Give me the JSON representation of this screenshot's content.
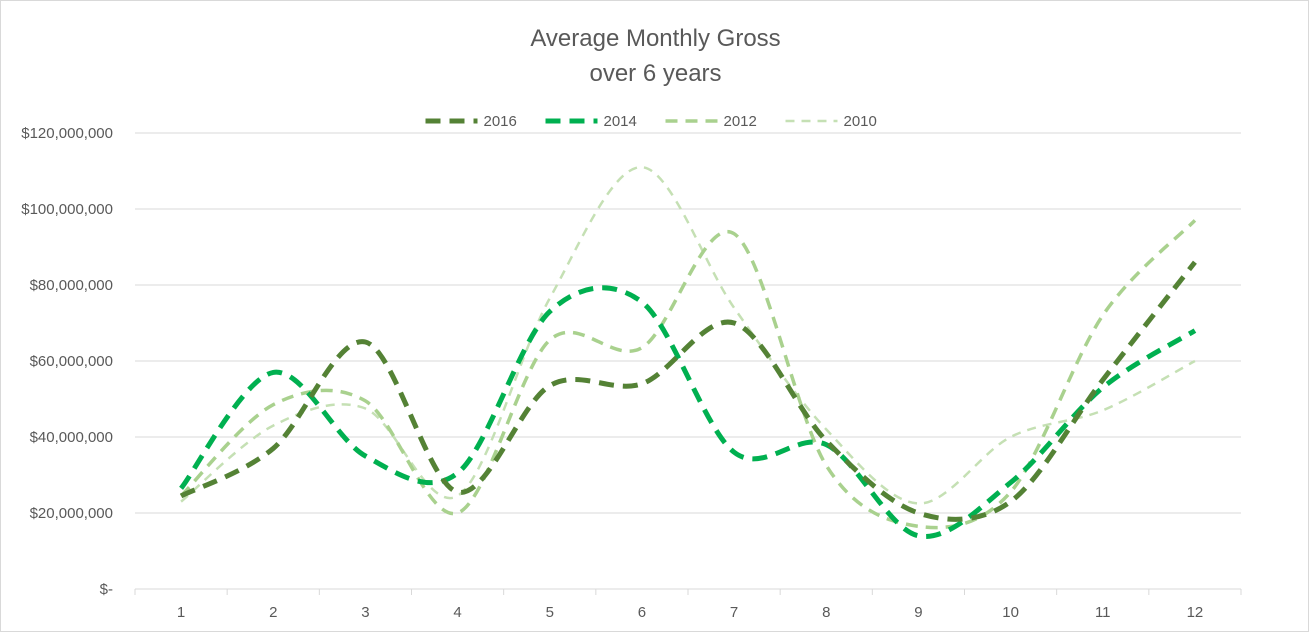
{
  "chart_data": {
    "type": "line",
    "title_lines": [
      "Average Monthly Gross",
      "over 6 years"
    ],
    "xlabel": "",
    "ylabel": "",
    "categories": [
      "1",
      "2",
      "3",
      "4",
      "5",
      "6",
      "7",
      "8",
      "9",
      "10",
      "11",
      "12"
    ],
    "ylim": [
      0,
      120000000
    ],
    "y_ticks": [
      0,
      20000000,
      40000000,
      60000000,
      80000000,
      100000000,
      120000000
    ],
    "y_tick_labels": [
      "$-",
      "$20,000,000",
      "$40,000,000",
      "$60,000,000",
      "$80,000,000",
      "$100,000,000",
      "$120,000,000"
    ],
    "grid": true,
    "smooth": true,
    "legend_position": "top",
    "series": [
      {
        "name": "2016",
        "color": "#548235",
        "style": "dashed-thick",
        "values": [
          24500000,
          37000000,
          65000000,
          25500000,
          53500000,
          54000000,
          70000000,
          39000000,
          20000000,
          23000000,
          55000000,
          86000000
        ]
      },
      {
        "name": "2014",
        "color": "#00b050",
        "style": "dashed-thick",
        "values": [
          26500000,
          57000000,
          35000000,
          30500000,
          73000000,
          75500000,
          36000000,
          38000000,
          14000000,
          28000000,
          53000000,
          68000000
        ]
      },
      {
        "name": "2012",
        "color": "#a9d18e",
        "style": "dashed-medium",
        "values": [
          24500000,
          48500000,
          49500000,
          20000000,
          65500000,
          63500000,
          93500000,
          32500000,
          16500000,
          25500000,
          72000000,
          97000000
        ]
      },
      {
        "name": "2010",
        "color": "#c5e0b4",
        "style": "dashed-thin",
        "values": [
          23000000,
          43000000,
          47500000,
          24500000,
          76500000,
          111000000,
          74000000,
          42000000,
          22500000,
          40000000,
          47000000,
          60000000
        ]
      }
    ]
  }
}
